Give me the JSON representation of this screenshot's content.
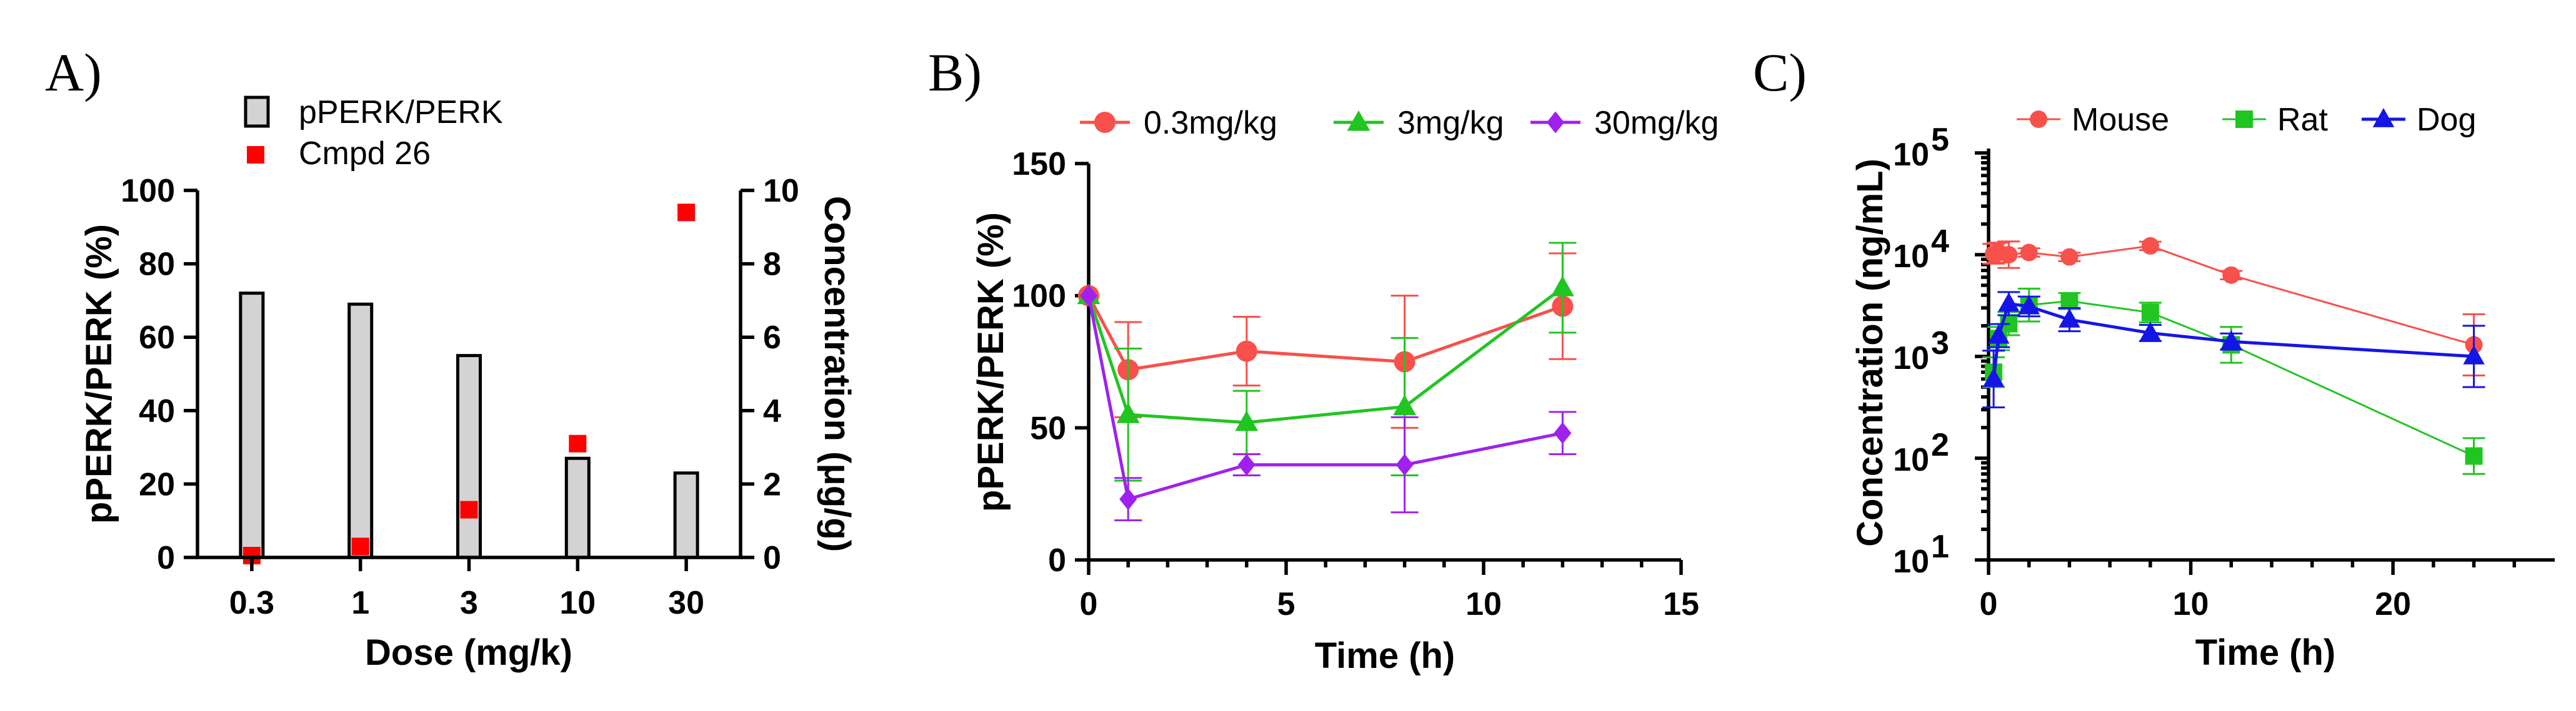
{
  "colors": {
    "bar_fill": "#d3d3d3",
    "red": "#f8504a",
    "square_red": "#ff0000",
    "green": "#21c521",
    "purple": "#a020f0",
    "blue": "#1515e8"
  },
  "chart_data": [
    {
      "panel": "A)",
      "type": "bar",
      "xlabel": "Dose (mg/k)",
      "ylabel": "pPERK/PERK (%)",
      "ylabel_right": "Concentration (μg/g)",
      "categories": [
        "0.3",
        "1",
        "3",
        "10",
        "30"
      ],
      "ylim": [
        0,
        100
      ],
      "yticks": [
        "0",
        "20",
        "40",
        "60",
        "80",
        "100"
      ],
      "ylim_right": [
        0,
        10
      ],
      "yticks_right": [
        "0",
        "2",
        "4",
        "6",
        "8",
        "10"
      ],
      "series": [
        {
          "name": "pPERK/PERK",
          "kind": "bar",
          "axis": "left",
          "values": [
            72,
            69,
            55,
            27,
            23
          ]
        },
        {
          "name": "Cmpd 26",
          "kind": "scatter",
          "axis": "right",
          "values": [
            0.05,
            0.3,
            1.3,
            3.1,
            9.4
          ]
        }
      ]
    },
    {
      "panel": "B)",
      "type": "line",
      "xlabel": "Time (h)",
      "ylabel": "pPERK/PERK (%)",
      "xlim": [
        0,
        15
      ],
      "xticks": [
        "0",
        "5",
        "10",
        "15"
      ],
      "ylim": [
        0,
        150
      ],
      "yticks": [
        "0",
        "50",
        "100",
        "150"
      ],
      "series": [
        {
          "name": "0.3mg/kg",
          "x": [
            0,
            1,
            4,
            8,
            12
          ],
          "y": [
            100,
            72,
            79,
            75,
            96
          ],
          "err": [
            0,
            18,
            13,
            25,
            20
          ]
        },
        {
          "name": "3mg/kg",
          "x": [
            0,
            1,
            4,
            8,
            12
          ],
          "y": [
            100,
            55,
            52,
            58,
            103
          ],
          "err": [
            0,
            25,
            12,
            26,
            17
          ]
        },
        {
          "name": "30mg/kg",
          "x": [
            0,
            1,
            4,
            8,
            12
          ],
          "y": [
            100,
            23,
            36,
            36,
            48
          ],
          "err": [
            0,
            8,
            4,
            18,
            8
          ]
        }
      ]
    },
    {
      "panel": "C)",
      "type": "line",
      "xlabel": "Time (h)",
      "ylabel": "Concentration (ng/mL)",
      "yscale": "log",
      "xlim": [
        0,
        28
      ],
      "xticks": [
        "0",
        "10",
        "20"
      ],
      "ylim": [
        10,
        100000
      ],
      "yticks": [
        "10",
        "10",
        "10",
        "10",
        "10"
      ],
      "ytick_exponents": [
        "1",
        "2",
        "3",
        "4",
        "5"
      ],
      "series": [
        {
          "name": "Mouse",
          "x": [
            0.25,
            0.5,
            1,
            2,
            4,
            8,
            12,
            24
          ],
          "y": [
            10200,
            10500,
            10000,
            10500,
            9500,
            12200,
            6300,
            1300
          ],
          "err_factor": [
            1.25,
            1.25,
            1.35,
            1.1,
            1.1,
            1.1,
            1.1,
            2.0
          ]
        },
        {
          "name": "Rat",
          "x": [
            0.25,
            0.5,
            1,
            2,
            4,
            8,
            12,
            24
          ],
          "y": [
            700,
            1500,
            2100,
            3200,
            3500,
            2700,
            1300,
            105
          ],
          "err_factor": [
            1.4,
            1.3,
            1.3,
            1.45,
            1.2,
            1.25,
            1.5,
            1.5
          ]
        },
        {
          "name": "Dog",
          "x": [
            0.25,
            0.5,
            1,
            2,
            4,
            8,
            12,
            24
          ],
          "y": [
            600,
            1600,
            3300,
            3100,
            2300,
            1700,
            1400,
            1000
          ],
          "err_factor": [
            1.9,
            1.3,
            1.3,
            1.25,
            1.3,
            1.2,
            1.2,
            2.0
          ]
        }
      ]
    }
  ]
}
